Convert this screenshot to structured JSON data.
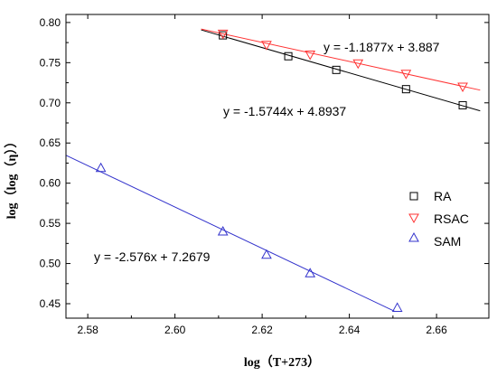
{
  "chart_data": {
    "type": "scatter",
    "xlabel": "log（T+273）",
    "ylabel": "log（log（η））",
    "xlim": [
      2.575,
      2.672
    ],
    "ylim": [
      0.432,
      0.81
    ],
    "xticks": [
      "2.58",
      "2.60",
      "2.62",
      "2.64",
      "2.66"
    ],
    "yticks": [
      "0.45",
      "0.50",
      "0.55",
      "0.60",
      "0.65",
      "0.70",
      "0.75",
      "0.80"
    ],
    "legend_position": "right",
    "series": [
      {
        "name": "RA",
        "marker": "square",
        "color": "#000000",
        "line_color": "#000000",
        "points": [
          [
            2.611,
            0.784
          ],
          [
            2.626,
            0.758
          ],
          [
            2.637,
            0.741
          ],
          [
            2.653,
            0.717
          ],
          [
            2.666,
            0.697
          ]
        ],
        "fit": {
          "slope": -1.5744,
          "intercept": 4.8937,
          "x_range": [
            2.606,
            2.67
          ]
        },
        "equation": "y = -1.5744x + 4.8937"
      },
      {
        "name": "RSAC",
        "marker": "triangle-down",
        "color": "#ff3333",
        "line_color": "#ff3333",
        "points": [
          [
            2.611,
            0.786
          ],
          [
            2.621,
            0.772
          ],
          [
            2.631,
            0.76
          ],
          [
            2.642,
            0.749
          ],
          [
            2.653,
            0.736
          ],
          [
            2.666,
            0.72
          ]
        ],
        "fit": {
          "slope": -1.1877,
          "intercept": 3.887,
          "x_range": [
            2.606,
            2.67
          ]
        },
        "equation": "y = -1.1877x + 3.887"
      },
      {
        "name": "SAM",
        "marker": "triangle-up",
        "color": "#3333cc",
        "line_color": "#3333cc",
        "points": [
          [
            2.583,
            0.619
          ],
          [
            2.611,
            0.54
          ],
          [
            2.621,
            0.511
          ],
          [
            2.631,
            0.488
          ],
          [
            2.651,
            0.445
          ]
        ],
        "fit": {
          "slope": -2.576,
          "intercept": 7.2679,
          "x_range": [
            2.575,
            2.6505
          ]
        },
        "equation": "y = -2.576x + 7.2679"
      }
    ]
  }
}
